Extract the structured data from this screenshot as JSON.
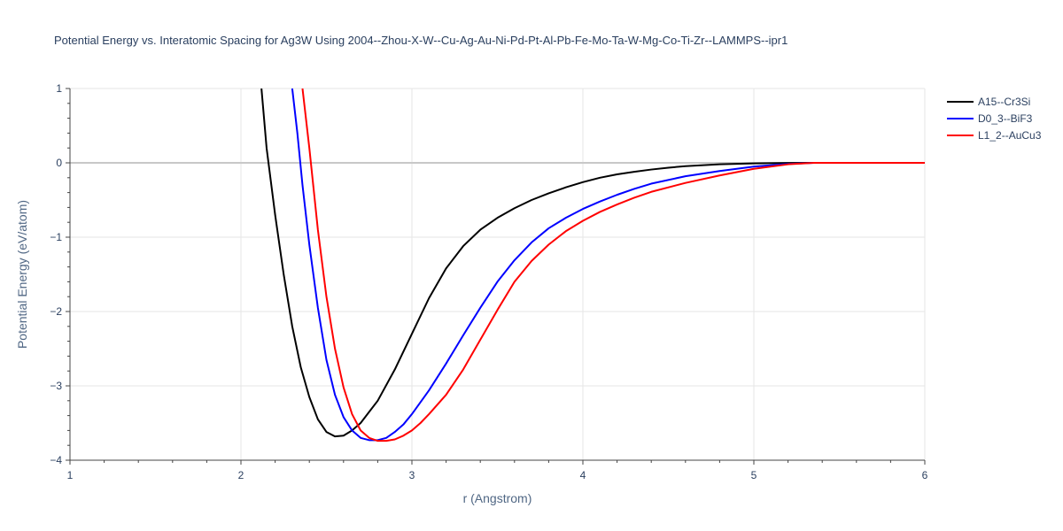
{
  "chart_data": {
    "type": "line",
    "title": "Potential Energy vs. Interatomic Spacing for Ag3W Using 2004--Zhou-X-W--Cu-Ag-Au-Ni-Pd-Pt-Al-Pb-Fe-Mo-Ta-W-Mg-Co-Ti-Zr--LAMMPS--ipr1",
    "xlabel": "r (Angstrom)",
    "ylabel": "Potential Energy (eV/atom)",
    "xlim": [
      1,
      6
    ],
    "ylim": [
      -4,
      1
    ],
    "x_ticks": [
      1,
      2,
      3,
      4,
      5,
      6
    ],
    "x_tick_labels": [
      "1",
      "2",
      "3",
      "4",
      "5",
      "6"
    ],
    "y_ticks": [
      1,
      0,
      -1,
      -2,
      -3,
      -4
    ],
    "y_tick_labels": [
      "1",
      "0",
      "−1",
      "−2",
      "−3",
      "−4"
    ],
    "grid": true,
    "legend_position": "top-right",
    "series": [
      {
        "name": "A15--Cr3Si",
        "color": "#000000",
        "x": [
          2.12,
          2.15,
          2.2,
          2.25,
          2.3,
          2.35,
          2.4,
          2.45,
          2.5,
          2.55,
          2.6,
          2.65,
          2.7,
          2.75,
          2.8,
          2.9,
          3.0,
          3.1,
          3.2,
          3.3,
          3.4,
          3.5,
          3.6,
          3.7,
          3.8,
          3.9,
          4.0,
          4.1,
          4.2,
          4.3,
          4.4,
          4.5,
          4.6,
          4.8,
          5.0,
          5.2,
          5.35,
          5.5,
          6.0
        ],
        "y": [
          1.0,
          0.2,
          -0.7,
          -1.5,
          -2.2,
          -2.75,
          -3.15,
          -3.45,
          -3.62,
          -3.68,
          -3.67,
          -3.6,
          -3.5,
          -3.35,
          -3.2,
          -2.78,
          -2.3,
          -1.82,
          -1.42,
          -1.12,
          -0.9,
          -0.74,
          -0.61,
          -0.5,
          -0.41,
          -0.33,
          -0.26,
          -0.2,
          -0.155,
          -0.12,
          -0.09,
          -0.065,
          -0.045,
          -0.02,
          -0.008,
          -0.002,
          0.0,
          0.0,
          0.0
        ]
      },
      {
        "name": "D0_3--BiF3",
        "color": "#0000ff",
        "x": [
          2.3,
          2.33,
          2.36,
          2.4,
          2.45,
          2.5,
          2.55,
          2.6,
          2.65,
          2.7,
          2.75,
          2.8,
          2.85,
          2.9,
          2.95,
          3.0,
          3.1,
          3.2,
          3.3,
          3.4,
          3.5,
          3.6,
          3.7,
          3.8,
          3.9,
          4.0,
          4.1,
          4.2,
          4.3,
          4.4,
          4.6,
          4.8,
          5.0,
          5.2,
          5.35,
          5.5,
          6.0
        ],
        "y": [
          1.0,
          0.4,
          -0.3,
          -1.1,
          -1.95,
          -2.65,
          -3.12,
          -3.42,
          -3.6,
          -3.7,
          -3.73,
          -3.73,
          -3.7,
          -3.62,
          -3.52,
          -3.38,
          -3.06,
          -2.7,
          -2.32,
          -1.95,
          -1.6,
          -1.31,
          -1.07,
          -0.88,
          -0.74,
          -0.62,
          -0.52,
          -0.43,
          -0.35,
          -0.28,
          -0.18,
          -0.11,
          -0.05,
          -0.015,
          0.0,
          0.0,
          0.0
        ]
      },
      {
        "name": "L1_2--AuCu3",
        "color": "#ff0000",
        "x": [
          2.36,
          2.4,
          2.45,
          2.5,
          2.55,
          2.6,
          2.65,
          2.7,
          2.75,
          2.8,
          2.85,
          2.9,
          2.95,
          3.0,
          3.05,
          3.1,
          3.2,
          3.3,
          3.4,
          3.5,
          3.6,
          3.7,
          3.8,
          3.9,
          4.0,
          4.1,
          4.2,
          4.3,
          4.4,
          4.6,
          4.8,
          5.0,
          5.2,
          5.35,
          5.5,
          6.0
        ],
        "y": [
          1.0,
          0.2,
          -0.9,
          -1.8,
          -2.5,
          -3.02,
          -3.38,
          -3.6,
          -3.7,
          -3.74,
          -3.74,
          -3.72,
          -3.67,
          -3.6,
          -3.5,
          -3.38,
          -3.12,
          -2.78,
          -2.38,
          -1.98,
          -1.6,
          -1.32,
          -1.1,
          -0.92,
          -0.78,
          -0.66,
          -0.56,
          -0.47,
          -0.39,
          -0.27,
          -0.17,
          -0.08,
          -0.02,
          0.0,
          0.0,
          0.0
        ]
      }
    ]
  }
}
